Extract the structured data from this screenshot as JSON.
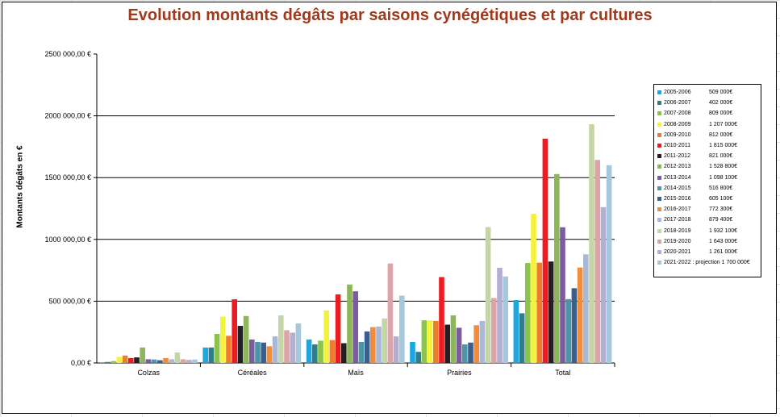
{
  "title": "Evolution montants dégâts par saisons cynégétiques et par cultures",
  "chart_data": {
    "type": "bar",
    "title": "Evolution montants dégâts par saisons cynégétiques et par cultures",
    "xlabel": "",
    "ylabel": "Montants dégâts en €",
    "ylim": [
      0,
      2500000
    ],
    "yticks": [
      0,
      500000,
      1000000,
      1500000,
      2000000,
      2500000
    ],
    "ytick_labels": [
      "0,00 €",
      "500 000,00 €",
      "1000 000,00 €",
      "1500 000,00 €",
      "2000 000,00 €",
      "2500 000,00 €"
    ],
    "grid": true,
    "legend_position": "right",
    "categories": [
      "Colzas",
      "Céréales",
      "Maïs",
      "Prairies",
      "Total"
    ],
    "series": [
      {
        "name": "2005-2006",
        "legend_value": "509 000€",
        "color": "#1ea6e0",
        "values": [
          5000,
          125000,
          190000,
          170000,
          509000
        ]
      },
      {
        "name": "2006-2007",
        "legend_value": "402 000€",
        "color": "#2e7d8c",
        "values": [
          8000,
          125000,
          150000,
          90000,
          402000
        ]
      },
      {
        "name": "2007-2008",
        "legend_value": "809 000€",
        "color": "#8cc34a",
        "values": [
          15000,
          235000,
          180000,
          345000,
          809000
        ]
      },
      {
        "name": "2008-2009",
        "legend_value": "1 207 000€",
        "color": "#f5f23a",
        "values": [
          50000,
          375000,
          425000,
          345000,
          1207000
        ]
      },
      {
        "name": "2009-2010",
        "legend_value": "812 000€",
        "color": "#ee7d2b",
        "values": [
          60000,
          220000,
          185000,
          340000,
          812000
        ]
      },
      {
        "name": "2010-2011",
        "legend_value": "1 815 000€",
        "color": "#ec1c24",
        "values": [
          40000,
          515000,
          555000,
          695000,
          1815000
        ]
      },
      {
        "name": "2011-2012",
        "legend_value": "821 000€",
        "color": "#231f20",
        "values": [
          45000,
          300000,
          160000,
          310000,
          821000
        ]
      },
      {
        "name": "2012-2013",
        "legend_value": "1 528 800€",
        "color": "#8db55a",
        "values": [
          125000,
          380000,
          635000,
          385000,
          1528800
        ]
      },
      {
        "name": "2013-2014",
        "legend_value": "1 098 100€",
        "color": "#7b5c9e",
        "values": [
          30000,
          190000,
          580000,
          285000,
          1098100
        ]
      },
      {
        "name": "2014-2015",
        "legend_value": "516 800€",
        "color": "#4a95a6",
        "values": [
          28000,
          170000,
          170000,
          150000,
          516800
        ]
      },
      {
        "name": "2015-2016",
        "legend_value": "605 100€",
        "color": "#3a5f8f",
        "values": [
          22000,
          165000,
          255000,
          165000,
          605100
        ]
      },
      {
        "name": "2016-2017",
        "legend_value": "772 300€",
        "color": "#f08c3a",
        "values": [
          40000,
          135000,
          290000,
          305000,
          772300
        ]
      },
      {
        "name": "2017-2018",
        "legend_value": "879 400€",
        "color": "#a9b8d8",
        "values": [
          30000,
          215000,
          295000,
          340000,
          879400
        ]
      },
      {
        "name": "2018-2019",
        "legend_value": "1 932 100€",
        "color": "#c4d6a8",
        "values": [
          85000,
          385000,
          360000,
          1100000,
          1932100
        ]
      },
      {
        "name": "2019-2020",
        "legend_value": "1 643 000€",
        "color": "#dca4a8",
        "values": [
          30000,
          265000,
          805000,
          525000,
          1643000
        ]
      },
      {
        "name": "2020-2021",
        "legend_value": "1 261 000€",
        "color": "#b4aed0",
        "values": [
          25000,
          245000,
          215000,
          770000,
          1261000
        ]
      },
      {
        "name": "2021-2022 : projection 1 700 000€",
        "legend_value": "",
        "color": "#a6c8dc",
        "values": [
          28000,
          320000,
          545000,
          700000,
          1600000
        ]
      }
    ]
  }
}
